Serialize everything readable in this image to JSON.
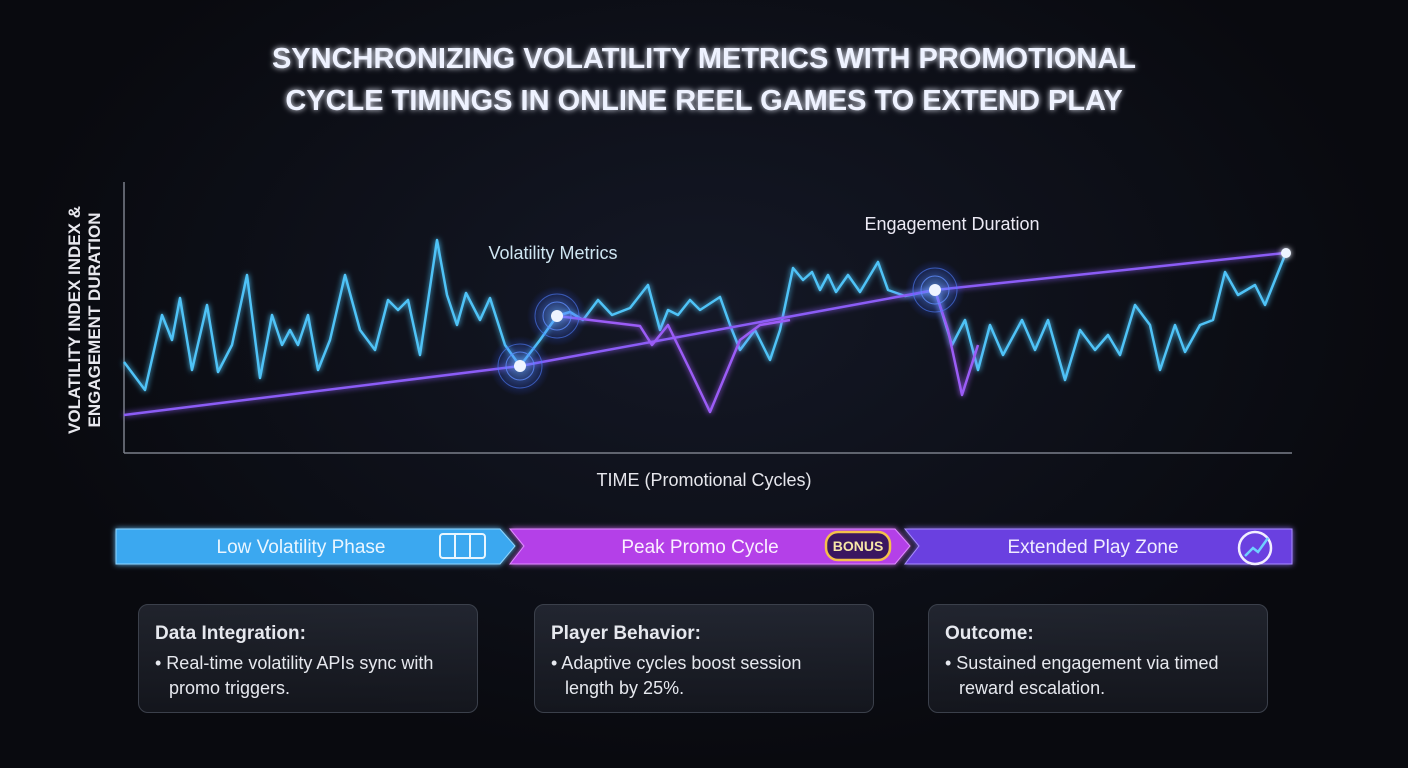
{
  "header": {
    "title": [
      "SYNCHRONIZING VOLATILITY METRICS WITH PROMOTIONAL",
      "CYCLE TIMINGS IN ONLINE REEL GAMES TO EXTEND PLAY"
    ]
  },
  "chart": {
    "y_axis_label": [
      "VOLATILITY INDEX INDEX &",
      "ENGAGEMENT DURATION"
    ],
    "x_axis_label": "TIME (Promotional Cycles)",
    "annotations": [
      "Volatility Metrics",
      "Engagement Duration"
    ]
  },
  "phases": {
    "labels": [
      "Low Volatility Phase",
      "Peak Promo Cycle",
      "Extended Play Zone"
    ],
    "badge": "BONUS"
  },
  "cards": [
    {
      "title": "Data Integration:",
      "text": "• Real-time volatility APIs sync with promo triggers."
    },
    {
      "title": "Player Behavior:",
      "text": "• Adaptive cycles boost session length by 25%."
    },
    {
      "title": "Outcome:",
      "text": "• Sustained engagement via timed reward escalation."
    }
  ]
}
